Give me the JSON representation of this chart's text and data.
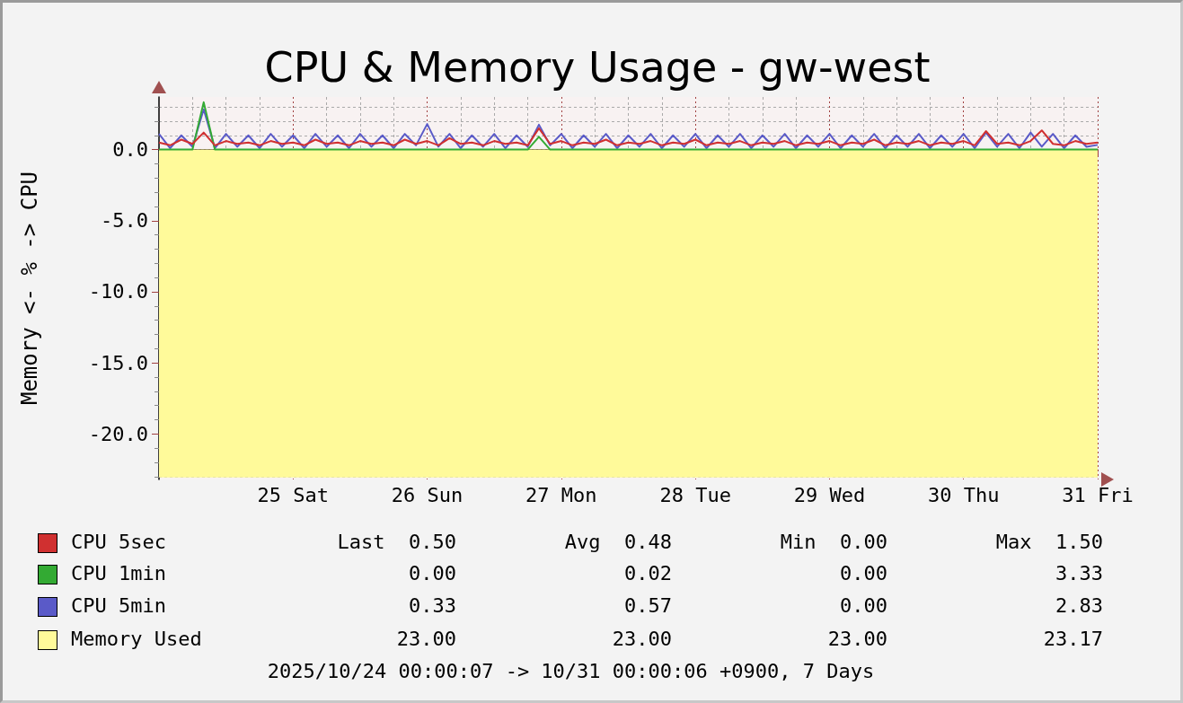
{
  "chart_data": {
    "type": "line",
    "title": "CPU & Memory Usage - gw-west",
    "ylabel": "Memory <- % -> CPU",
    "x": [
      "2025-10-24T00:00",
      "2025-10-24T02:00",
      "2025-10-24T04:00",
      "2025-10-24T06:00",
      "2025-10-24T08:00",
      "2025-10-24T10:00",
      "2025-10-24T12:00",
      "2025-10-24T14:00",
      "2025-10-24T16:00",
      "2025-10-24T18:00",
      "2025-10-24T20:00",
      "2025-10-24T22:00",
      "2025-10-25T00:00",
      "2025-10-25T02:00",
      "2025-10-25T04:00",
      "2025-10-25T06:00",
      "2025-10-25T08:00",
      "2025-10-25T10:00",
      "2025-10-25T12:00",
      "2025-10-25T14:00",
      "2025-10-25T16:00",
      "2025-10-25T18:00",
      "2025-10-25T20:00",
      "2025-10-25T22:00",
      "2025-10-26T00:00",
      "2025-10-26T02:00",
      "2025-10-26T04:00",
      "2025-10-26T06:00",
      "2025-10-26T08:00",
      "2025-10-26T10:00",
      "2025-10-26T12:00",
      "2025-10-26T14:00",
      "2025-10-26T16:00",
      "2025-10-26T18:00",
      "2025-10-26T20:00",
      "2025-10-26T22:00",
      "2025-10-27T00:00",
      "2025-10-27T02:00",
      "2025-10-27T04:00",
      "2025-10-27T06:00",
      "2025-10-27T08:00",
      "2025-10-27T10:00",
      "2025-10-27T12:00",
      "2025-10-27T14:00",
      "2025-10-27T16:00",
      "2025-10-27T18:00",
      "2025-10-27T20:00",
      "2025-10-27T22:00",
      "2025-10-28T00:00",
      "2025-10-28T02:00",
      "2025-10-28T04:00",
      "2025-10-28T06:00",
      "2025-10-28T08:00",
      "2025-10-28T10:00",
      "2025-10-28T12:00",
      "2025-10-28T14:00",
      "2025-10-28T16:00",
      "2025-10-28T18:00",
      "2025-10-28T20:00",
      "2025-10-28T22:00",
      "2025-10-29T00:00",
      "2025-10-29T02:00",
      "2025-10-29T04:00",
      "2025-10-29T06:00",
      "2025-10-29T08:00",
      "2025-10-29T10:00",
      "2025-10-29T12:00",
      "2025-10-29T14:00",
      "2025-10-29T16:00",
      "2025-10-29T18:00",
      "2025-10-29T20:00",
      "2025-10-29T22:00",
      "2025-10-30T00:00",
      "2025-10-30T02:00",
      "2025-10-30T04:00",
      "2025-10-30T06:00",
      "2025-10-30T08:00",
      "2025-10-30T10:00",
      "2025-10-30T12:00",
      "2025-10-30T14:00",
      "2025-10-30T16:00",
      "2025-10-30T18:00",
      "2025-10-30T20:00",
      "2025-10-30T22:00",
      "2025-10-31T00:00"
    ],
    "series": [
      {
        "name": "Memory Used",
        "type": "area",
        "color": "#fffa9a",
        "values": [
          -23,
          -23,
          -23,
          -23,
          -23,
          -23,
          -23,
          -23,
          -23,
          -23,
          -23,
          -23,
          -23,
          -23,
          -23,
          -23,
          -23,
          -23,
          -23,
          -23,
          -23,
          -23,
          -23,
          -23,
          -23,
          -23,
          -23,
          -23,
          -23,
          -23,
          -23,
          -23,
          -23,
          -23,
          -23,
          -23,
          -23,
          -23,
          -23,
          -23,
          -23,
          -23,
          -23,
          -23,
          -23,
          -23,
          -23,
          -23,
          -23,
          -23,
          -23,
          -23,
          -23,
          -23,
          -23,
          -23,
          -23,
          -23,
          -23,
          -23,
          -23,
          -23,
          -23,
          -23,
          -23,
          -23,
          -23,
          -23,
          -23,
          -23,
          -23,
          -23,
          -23,
          -23,
          -23,
          -23,
          -23,
          -23,
          -23,
          -23,
          -23,
          -23,
          -23,
          -23,
          -23
        ]
      },
      {
        "name": "CPU 5min",
        "color": "#5a5ac8",
        "values": [
          1.1,
          0.1,
          1.0,
          0.2,
          2.83,
          0.1,
          1.1,
          0.2,
          1.0,
          0.1,
          1.1,
          0.2,
          1.0,
          0.1,
          1.1,
          0.2,
          1.0,
          0.1,
          1.1,
          0.2,
          1.0,
          0.1,
          1.1,
          0.3,
          1.8,
          0.2,
          1.1,
          0.1,
          1.0,
          0.2,
          1.1,
          0.1,
          1.0,
          0.2,
          1.75,
          0.3,
          1.1,
          0.1,
          1.0,
          0.2,
          1.1,
          0.1,
          1.0,
          0.2,
          1.1,
          0.1,
          1.0,
          0.2,
          1.1,
          0.1,
          1.0,
          0.2,
          1.1,
          0.1,
          1.0,
          0.2,
          1.1,
          0.1,
          1.0,
          0.2,
          1.1,
          0.1,
          1.0,
          0.2,
          1.1,
          0.1,
          1.0,
          0.2,
          1.1,
          0.1,
          1.0,
          0.2,
          1.1,
          0.1,
          1.2,
          0.2,
          1.1,
          0.1,
          1.2,
          0.2,
          1.1,
          0.1,
          1.0,
          0.2,
          0.33
        ]
      },
      {
        "name": "CPU 1min",
        "color": "#33aa33",
        "values": [
          0,
          0,
          0,
          0,
          3.33,
          0,
          0,
          0,
          0,
          0,
          0,
          0,
          0,
          0,
          0,
          0,
          0,
          0,
          0,
          0,
          0,
          0,
          0,
          0,
          0,
          0,
          0,
          0,
          0,
          0,
          0,
          0,
          0,
          0,
          0.9,
          0,
          0,
          0,
          0,
          0,
          0,
          0,
          0,
          0,
          0,
          0,
          0,
          0,
          0,
          0,
          0,
          0,
          0,
          0,
          0,
          0,
          0,
          0,
          0,
          0,
          0,
          0,
          0,
          0,
          0,
          0,
          0,
          0,
          0,
          0,
          0,
          0,
          0,
          0,
          0,
          0,
          0,
          0,
          0,
          0,
          0,
          0,
          0,
          0,
          0
        ]
      },
      {
        "name": "CPU 5sec",
        "color": "#d03030",
        "values": [
          0.5,
          0.3,
          0.7,
          0.4,
          1.2,
          0.3,
          0.6,
          0.4,
          0.5,
          0.3,
          0.6,
          0.4,
          0.5,
          0.3,
          0.7,
          0.4,
          0.5,
          0.3,
          0.6,
          0.4,
          0.5,
          0.3,
          0.7,
          0.4,
          0.6,
          0.3,
          0.8,
          0.4,
          0.5,
          0.3,
          0.6,
          0.4,
          0.5,
          0.3,
          1.5,
          0.4,
          0.6,
          0.3,
          0.5,
          0.4,
          0.7,
          0.3,
          0.5,
          0.4,
          0.6,
          0.3,
          0.5,
          0.4,
          0.7,
          0.3,
          0.5,
          0.4,
          0.6,
          0.3,
          0.5,
          0.4,
          0.6,
          0.3,
          0.5,
          0.4,
          0.6,
          0.3,
          0.5,
          0.4,
          0.7,
          0.3,
          0.5,
          0.4,
          0.6,
          0.3,
          0.5,
          0.4,
          0.6,
          0.3,
          1.3,
          0.4,
          0.5,
          0.3,
          0.6,
          1.35,
          0.4,
          0.3,
          0.6,
          0.4,
          0.5
        ]
      }
    ],
    "xlim": [
      "2025-10-24T00:00",
      "2025-10-31T00:00"
    ],
    "xticks": [
      {
        "value": "2025-10-24T06:00",
        "label": null
      },
      {
        "value": "2025-10-24T12:00",
        "label": null
      },
      {
        "value": "2025-10-24T18:00",
        "label": null
      },
      {
        "value": "2025-10-25T00:00",
        "label": "25 Sat"
      },
      {
        "value": "2025-10-25T06:00",
        "label": null
      },
      {
        "value": "2025-10-25T12:00",
        "label": null
      },
      {
        "value": "2025-10-25T18:00",
        "label": null
      },
      {
        "value": "2025-10-26T00:00",
        "label": "26 Sun"
      },
      {
        "value": "2025-10-26T06:00",
        "label": null
      },
      {
        "value": "2025-10-26T12:00",
        "label": null
      },
      {
        "value": "2025-10-26T18:00",
        "label": null
      },
      {
        "value": "2025-10-27T00:00",
        "label": "27 Mon"
      },
      {
        "value": "2025-10-27T06:00",
        "label": null
      },
      {
        "value": "2025-10-27T12:00",
        "label": null
      },
      {
        "value": "2025-10-27T18:00",
        "label": null
      },
      {
        "value": "2025-10-28T00:00",
        "label": "28 Tue"
      },
      {
        "value": "2025-10-28T06:00",
        "label": null
      },
      {
        "value": "2025-10-28T12:00",
        "label": null
      },
      {
        "value": "2025-10-28T18:00",
        "label": null
      },
      {
        "value": "2025-10-29T00:00",
        "label": "29 Wed"
      },
      {
        "value": "2025-10-29T06:00",
        "label": null
      },
      {
        "value": "2025-10-29T12:00",
        "label": null
      },
      {
        "value": "2025-10-29T18:00",
        "label": null
      },
      {
        "value": "2025-10-30T00:00",
        "label": "30 Thu"
      },
      {
        "value": "2025-10-30T06:00",
        "label": null
      },
      {
        "value": "2025-10-30T12:00",
        "label": null
      },
      {
        "value": "2025-10-30T18:00",
        "label": null
      },
      {
        "value": "2025-10-31T00:00",
        "label": "31 Fri"
      }
    ],
    "ylim": [
      -23.2,
      3.7
    ],
    "yticks": [
      {
        "value": -23,
        "label": null
      },
      {
        "value": -22,
        "label": null
      },
      {
        "value": -21,
        "label": null
      },
      {
        "value": -20,
        "label": "-20.0"
      },
      {
        "value": -19,
        "label": null
      },
      {
        "value": -18,
        "label": null
      },
      {
        "value": -17,
        "label": null
      },
      {
        "value": -16,
        "label": null
      },
      {
        "value": -15,
        "label": "-15.0"
      },
      {
        "value": -14,
        "label": null
      },
      {
        "value": -13,
        "label": null
      },
      {
        "value": -12,
        "label": null
      },
      {
        "value": -11,
        "label": null
      },
      {
        "value": -10,
        "label": "-10.0"
      },
      {
        "value": -9,
        "label": null
      },
      {
        "value": -8,
        "label": null
      },
      {
        "value": -7,
        "label": null
      },
      {
        "value": -6,
        "label": null
      },
      {
        "value": -5,
        "label": "-5.0"
      },
      {
        "value": -4,
        "label": null
      },
      {
        "value": -3,
        "label": null
      },
      {
        "value": -2,
        "label": null
      },
      {
        "value": -1,
        "label": null
      },
      {
        "value": 0,
        "label": "0.0"
      },
      {
        "value": 1,
        "label": null
      },
      {
        "value": 2,
        "label": null
      },
      {
        "value": 3,
        "label": null
      }
    ],
    "grid": true,
    "legend": "bottom",
    "marker": "none",
    "line_style": "solid",
    "annotations": [
      "Last",
      "Avg",
      "Min",
      "Max",
      "0.50",
      "0.48",
      "0.00",
      "1.50",
      "0.00",
      "0.02",
      "0.00",
      "3.33",
      "0.33",
      "0.57",
      "0.00",
      "2.83",
      "23.00",
      "23.00",
      "23.00",
      "23.17",
      "2025/10/24 00:00:07 -> 10/31 00:00:06 +0900, 7 Days"
    ]
  }
}
